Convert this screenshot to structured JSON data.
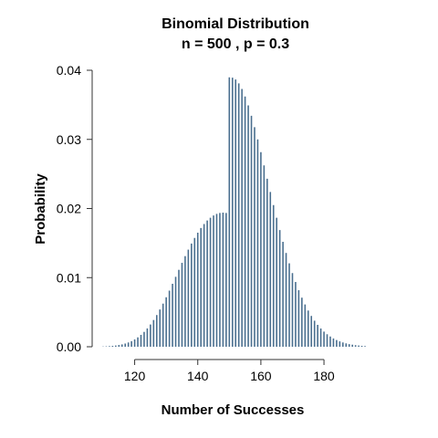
{
  "chart_data": {
    "type": "bar",
    "title": "Binomial Distribution",
    "subtitle": "n = 500 , p = 0.3",
    "xlabel": "Number of Successes",
    "ylabel": "Probability",
    "n": 500,
    "p": 0.3,
    "xlim": [
      110,
      193
    ],
    "ylim": [
      0,
      0.04
    ],
    "x_ticks": [
      120,
      140,
      160,
      180
    ],
    "y_ticks": [
      "0.00",
      "0.01",
      "0.02",
      "0.03",
      "0.04"
    ],
    "bar_color": "#4a6f8f",
    "grid": false,
    "legend": "none",
    "x": [
      110,
      111,
      112,
      113,
      114,
      115,
      116,
      117,
      118,
      119,
      120,
      121,
      122,
      123,
      124,
      125,
      126,
      127,
      128,
      129,
      130,
      131,
      132,
      133,
      134,
      135,
      136,
      137,
      138,
      139,
      140,
      141,
      142,
      143,
      144,
      145,
      146,
      147,
      148,
      149,
      150,
      151,
      152,
      153,
      154,
      155,
      156,
      157,
      158,
      159,
      160,
      161,
      162,
      163,
      164,
      165,
      166,
      167,
      168,
      169,
      170,
      171,
      172,
      173,
      174,
      175,
      176,
      177,
      178,
      179,
      180,
      181,
      182,
      183,
      184,
      185,
      186,
      187,
      188,
      189,
      190,
      191,
      192,
      193
    ],
    "values": [
      4e-05,
      6e-05,
      9e-05,
      0.00013,
      0.00018,
      0.00025,
      0.00034,
      0.00046,
      0.00062,
      0.00081,
      0.00106,
      0.00136,
      0.00172,
      0.00215,
      0.00265,
      0.00322,
      0.00387,
      0.00459,
      0.00539,
      0.00624,
      0.00716,
      0.00812,
      0.00911,
      0.01012,
      0.01113,
      0.01214,
      0.01311,
      0.01405,
      0.01493,
      0.01575,
      0.0165,
      0.01717,
      0.01776,
      0.01826,
      0.01867,
      0.01899,
      0.01922,
      0.01935,
      0.0194,
      0.01935,
      0.03898,
      0.03892,
      0.03866,
      0.03811,
      0.03729,
      0.03621,
      0.03491,
      0.03342,
      0.03177,
      0.03,
      0.02815,
      0.02624,
      0.02431,
      0.02239,
      0.0205,
      0.01866,
      0.01688,
      0.01518,
      0.01357,
      0.01207,
      0.01066,
      0.00937,
      0.00818,
      0.0071,
      0.00612,
      0.00524,
      0.00446,
      0.00377,
      0.00317,
      0.00264,
      0.00219,
      0.00181,
      0.00148,
      0.0012,
      0.00097,
      0.00078,
      0.00062,
      0.00049,
      0.00038,
      0.0003,
      0.00023,
      0.00018,
      0.00013,
      0.0001
    ]
  }
}
